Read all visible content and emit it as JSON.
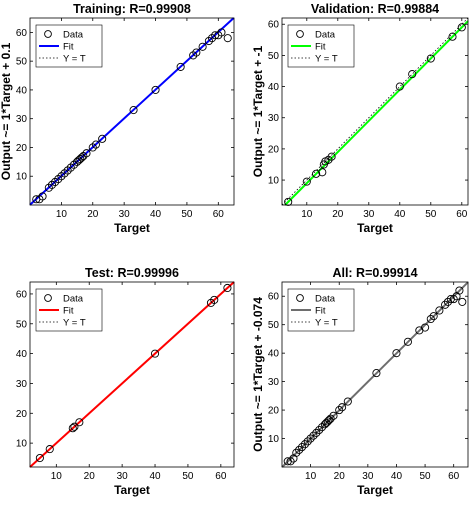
{
  "chart_data": [
    {
      "type": "scatter",
      "title": "Training: R=0.99908",
      "xlabel": "Target",
      "ylabel": "Output ~= 1*Target + 0.1",
      "xlim": [
        0,
        65
      ],
      "ylim": [
        0,
        65
      ],
      "xticks": [
        10,
        20,
        30,
        40,
        50,
        60
      ],
      "yticks": [
        10,
        20,
        30,
        40,
        50,
        60
      ],
      "grid": false,
      "legend_position": "top-left",
      "fit_color": "#0000ff",
      "fit": {
        "slope": 1,
        "intercept": 0.1
      },
      "legend": [
        "Data",
        "Fit",
        "Y = T"
      ],
      "series": [
        {
          "name": "Data",
          "x": [
            2,
            3,
            4,
            6,
            7,
            8,
            9,
            10,
            11,
            12,
            13,
            14,
            15,
            15.5,
            16,
            16.5,
            17,
            18,
            20,
            21,
            23,
            33,
            40,
            48,
            52,
            53,
            55,
            57,
            58,
            59,
            60,
            61,
            63
          ],
          "y": [
            2,
            2,
            3,
            6,
            7,
            8,
            9,
            10,
            11,
            12,
            13,
            14,
            15,
            15.5,
            16,
            16.5,
            17,
            18,
            20,
            21,
            23,
            33,
            40,
            48,
            52,
            53,
            55,
            57,
            58,
            59,
            59,
            60,
            58
          ]
        }
      ]
    },
    {
      "type": "scatter",
      "title": "Validation: R=0.99884",
      "xlabel": "Target",
      "ylabel": "Output ~= 1*Target + -1",
      "xlim": [
        2,
        62
      ],
      "ylim": [
        2,
        62
      ],
      "xticks": [
        10,
        20,
        30,
        40,
        50,
        60
      ],
      "yticks": [
        10,
        20,
        30,
        40,
        50,
        60
      ],
      "grid": false,
      "legend_position": "top-left",
      "fit_color": "#00ff00",
      "fit": {
        "slope": 1,
        "intercept": -1
      },
      "legend": [
        "Data",
        "Fit",
        "Y = T"
      ],
      "series": [
        {
          "name": "Data",
          "x": [
            4,
            10,
            13,
            15,
            15.5,
            16,
            17,
            18,
            40,
            44,
            50,
            57,
            60
          ],
          "y": [
            3,
            9.5,
            12,
            12.5,
            15,
            16,
            16.5,
            17.5,
            40,
            44,
            49,
            56,
            59
          ]
        }
      ]
    },
    {
      "type": "scatter",
      "title": "Test: R=0.99996",
      "xlabel": "Target",
      "ylabel": "",
      "xlim": [
        2,
        64
      ],
      "ylim": [
        2,
        64
      ],
      "xticks": [
        10,
        20,
        30,
        40,
        50,
        60
      ],
      "yticks": [
        10,
        20,
        30,
        40,
        50,
        60
      ],
      "grid": false,
      "legend_position": "top-left",
      "fit_color": "#ff0000",
      "fit": {
        "slope": 1,
        "intercept": 0
      },
      "legend": [
        "Data",
        "Fit",
        "Y = T"
      ],
      "series": [
        {
          "name": "Data",
          "x": [
            5,
            8,
            15,
            15.5,
            17,
            40,
            57,
            58,
            62
          ],
          "y": [
            5,
            8,
            15,
            15.5,
            17,
            40,
            57,
            58,
            62
          ]
        }
      ]
    },
    {
      "type": "scatter",
      "title": "All: R=0.99914",
      "xlabel": "Target",
      "ylabel": "Output ~= 1*Target + -0.074",
      "xlim": [
        0,
        65
      ],
      "ylim": [
        0,
        65
      ],
      "xticks": [
        10,
        20,
        30,
        40,
        50,
        60
      ],
      "yticks": [
        10,
        20,
        30,
        40,
        50,
        60
      ],
      "grid": false,
      "legend_position": "top-left",
      "fit_color": "#6e6e6e",
      "fit": {
        "slope": 1,
        "intercept": -0.074
      },
      "legend": [
        "Data",
        "Fit",
        "Y = T"
      ],
      "series": [
        {
          "name": "Data",
          "x": [
            2,
            3,
            4,
            5,
            6,
            7,
            8,
            9,
            10,
            11,
            12,
            13,
            14,
            15,
            15.5,
            16,
            16.5,
            17,
            18,
            20,
            21,
            23,
            33,
            40,
            44,
            48,
            50,
            52,
            53,
            55,
            57,
            58,
            59,
            60,
            61,
            62,
            63
          ],
          "y": [
            2,
            2,
            3,
            5,
            6,
            7,
            8,
            9,
            10,
            11,
            12,
            13,
            14,
            15,
            15.5,
            16,
            16.5,
            17,
            18,
            20,
            21,
            23,
            33,
            40,
            44,
            48,
            49,
            52,
            53,
            55,
            57,
            58,
            59,
            59,
            60,
            62,
            58
          ]
        }
      ]
    }
  ]
}
